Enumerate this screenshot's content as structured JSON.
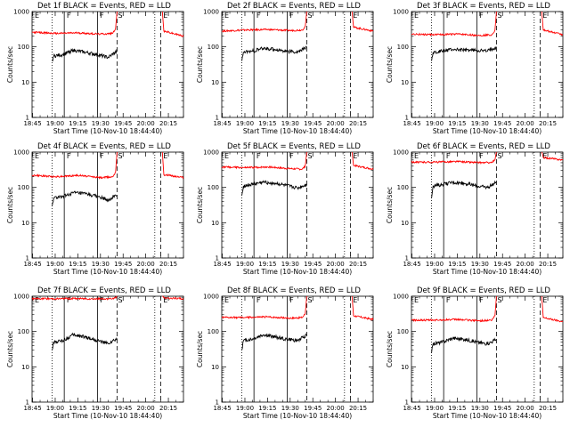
{
  "figure": {
    "x_tick_labels": [
      "18:45",
      "19:00",
      "19:15",
      "19:30",
      "19:45",
      "20:00",
      "20:15"
    ],
    "y_tick_labels": [
      "1",
      "10",
      "100",
      "1000"
    ],
    "xlabel": "Start Time (10-Nov-10 18:44:40)",
    "ylabel": "Counts/sec",
    "marker_flags": [
      "E",
      "F",
      "F",
      "S",
      "E"
    ],
    "colors": {
      "events": "#000000",
      "lld": "#ff0000",
      "background": "#ffffff"
    }
  },
  "chart_data": [
    {
      "type": "line",
      "title": "Det 1f BLACK = Events, RED = LLD",
      "xlabel": "Start Time (10-Nov-10 18:44:40)",
      "ylabel": "Counts/sec",
      "xlim": [
        "18:44:40",
        "20:25"
      ],
      "ylim": [
        1,
        1000
      ],
      "yscale": "log",
      "markers": {
        "dotted": [
          "18:58",
          "20:06"
        ],
        "solid": [
          "19:06",
          "19:28"
        ],
        "dashed": [
          "19:41",
          "20:10"
        ]
      },
      "series": [
        {
          "name": "LLD",
          "x": [
            "18:44:40",
            "19:00",
            "19:15",
            "19:30",
            "19:38",
            "19:40",
            "19:41",
            "20:11",
            "20:12",
            "20:25"
          ],
          "values": [
            260,
            240,
            250,
            230,
            240,
            330,
            1000,
            1000,
            280,
            200
          ]
        },
        {
          "name": "Events",
          "x": [
            "18:58",
            "18:59",
            "19:05",
            "19:12",
            "19:20",
            "19:28",
            "19:35",
            "19:41"
          ],
          "values": [
            40,
            55,
            60,
            80,
            70,
            60,
            50,
            75
          ]
        }
      ]
    },
    {
      "type": "line",
      "title": "Det 2f BLACK = Events, RED = LLD",
      "xlabel": "Start Time (10-Nov-10 18:44:40)",
      "ylabel": "Counts/sec",
      "xlim": [
        "18:44:40",
        "20:25"
      ],
      "ylim": [
        1,
        1000
      ],
      "yscale": "log",
      "markers": {
        "dotted": [
          "18:58",
          "20:06"
        ],
        "solid": [
          "19:06",
          "19:28"
        ],
        "dashed": [
          "19:41",
          "20:10"
        ]
      },
      "series": [
        {
          "name": "LLD",
          "x": [
            "18:44:40",
            "19:00",
            "19:15",
            "19:30",
            "19:38",
            "19:40",
            "19:41",
            "20:11",
            "20:12",
            "20:25"
          ],
          "values": [
            280,
            300,
            310,
            290,
            300,
            380,
            1000,
            1000,
            360,
            280
          ]
        },
        {
          "name": "Events",
          "x": [
            "18:58",
            "18:59",
            "19:05",
            "19:12",
            "19:20",
            "19:28",
            "19:35",
            "19:41"
          ],
          "values": [
            40,
            70,
            75,
            90,
            85,
            75,
            70,
            100
          ]
        }
      ]
    },
    {
      "type": "line",
      "title": "Det 3f BLACK = Events, RED = LLD",
      "xlabel": "Start Time (10-Nov-10 18:44:40)",
      "ylabel": "Counts/sec",
      "xlim": [
        "18:44:40",
        "20:25"
      ],
      "ylim": [
        1,
        1000
      ],
      "yscale": "log",
      "markers": {
        "dotted": [
          "18:58",
          "20:06"
        ],
        "solid": [
          "19:06",
          "19:28"
        ],
        "dashed": [
          "19:41",
          "20:10"
        ]
      },
      "series": [
        {
          "name": "LLD",
          "x": [
            "18:44:40",
            "19:00",
            "19:15",
            "19:30",
            "19:38",
            "19:40",
            "19:41",
            "20:11",
            "20:12",
            "20:25"
          ],
          "values": [
            230,
            220,
            230,
            210,
            220,
            300,
            1000,
            1000,
            300,
            220
          ]
        },
        {
          "name": "Events",
          "x": [
            "18:58",
            "18:59",
            "19:05",
            "19:12",
            "19:20",
            "19:28",
            "19:35",
            "19:41"
          ],
          "values": [
            40,
            70,
            75,
            85,
            80,
            80,
            75,
            100
          ]
        }
      ]
    },
    {
      "type": "line",
      "title": "Det 4f BLACK = Events, RED = LLD",
      "xlabel": "Start Time (10-Nov-10 18:44:40)",
      "ylabel": "Counts/sec",
      "xlim": [
        "18:44:40",
        "20:25"
      ],
      "ylim": [
        1,
        1000
      ],
      "yscale": "log",
      "markers": {
        "dotted": [
          "18:58",
          "20:06"
        ],
        "solid": [
          "19:06",
          "19:28"
        ],
        "dashed": [
          "19:41",
          "20:10"
        ]
      },
      "series": [
        {
          "name": "LLD",
          "x": [
            "18:44:40",
            "19:00",
            "19:15",
            "19:30",
            "19:38",
            "19:40",
            "19:41",
            "20:11",
            "20:12",
            "20:25"
          ],
          "values": [
            220,
            200,
            220,
            190,
            200,
            270,
            1000,
            1000,
            230,
            190
          ]
        },
        {
          "name": "Events",
          "x": [
            "18:58",
            "18:59",
            "19:05",
            "19:12",
            "19:20",
            "19:28",
            "19:35",
            "19:41"
          ],
          "values": [
            30,
            50,
            55,
            70,
            65,
            55,
            45,
            60
          ]
        }
      ]
    },
    {
      "type": "line",
      "title": "Det 5f BLACK = Events, RED = LLD",
      "xlabel": "Start Time (10-Nov-10 18:44:40)",
      "ylabel": "Counts/sec",
      "xlim": [
        "18:44:40",
        "20:25"
      ],
      "ylim": [
        1,
        1000
      ],
      "yscale": "log",
      "markers": {
        "dotted": [
          "18:58",
          "20:06"
        ],
        "solid": [
          "19:06",
          "19:28"
        ],
        "dashed": [
          "19:41",
          "20:10"
        ]
      },
      "series": [
        {
          "name": "LLD",
          "x": [
            "18:44:40",
            "19:00",
            "19:15",
            "19:30",
            "19:38",
            "19:40",
            "19:41",
            "20:11",
            "20:12",
            "20:25"
          ],
          "values": [
            380,
            360,
            380,
            340,
            330,
            400,
            1000,
            1000,
            420,
            330
          ]
        },
        {
          "name": "Events",
          "x": [
            "18:58",
            "18:59",
            "19:05",
            "19:12",
            "19:20",
            "19:28",
            "19:35",
            "19:41"
          ],
          "values": [
            60,
            110,
            120,
            140,
            130,
            110,
            95,
            120
          ]
        }
      ]
    },
    {
      "type": "line",
      "title": "Det 6f BLACK = Events, RED = LLD",
      "xlabel": "Start Time (10-Nov-10 18:44:40)",
      "ylabel": "Counts/sec",
      "xlim": [
        "18:44:40",
        "20:25"
      ],
      "ylim": [
        1,
        1000
      ],
      "yscale": "log",
      "markers": {
        "dotted": [
          "18:58",
          "20:06"
        ],
        "solid": [
          "19:06",
          "19:28"
        ],
        "dashed": [
          "19:41",
          "20:10"
        ]
      },
      "series": [
        {
          "name": "LLD",
          "x": [
            "18:44:40",
            "19:00",
            "19:15",
            "19:30",
            "19:38",
            "19:40",
            "19:41",
            "20:11",
            "20:12",
            "20:25"
          ],
          "values": [
            520,
            520,
            540,
            500,
            510,
            600,
            1000,
            1000,
            700,
            600
          ]
        },
        {
          "name": "Events",
          "x": [
            "18:58",
            "18:59",
            "19:05",
            "19:12",
            "19:20",
            "19:28",
            "19:35",
            "19:41"
          ],
          "values": [
            50,
            110,
            120,
            140,
            130,
            110,
            100,
            140
          ]
        }
      ]
    },
    {
      "type": "line",
      "title": "Det 7f BLACK = Events, RED = LLD",
      "xlabel": "Start Time (10-Nov-10 18:44:40)",
      "ylabel": "Counts/sec",
      "xlim": [
        "18:44:40",
        "20:25"
      ],
      "ylim": [
        1,
        1000
      ],
      "yscale": "log",
      "markers": {
        "dotted": [
          "18:58",
          "20:06"
        ],
        "solid": [
          "19:06",
          "19:28"
        ],
        "dashed": [
          "19:41",
          "20:10"
        ]
      },
      "series": [
        {
          "name": "LLD",
          "x": [
            "18:44:40",
            "19:00",
            "19:15",
            "19:30",
            "19:38",
            "19:40",
            "19:41",
            "20:11",
            "20:12",
            "20:25"
          ],
          "values": [
            850,
            850,
            860,
            840,
            850,
            900,
            1000,
            1000,
            900,
            850
          ]
        },
        {
          "name": "Events",
          "x": [
            "18:58",
            "18:59",
            "19:05",
            "19:12",
            "19:20",
            "19:28",
            "19:35",
            "19:41"
          ],
          "values": [
            30,
            50,
            55,
            80,
            70,
            55,
            45,
            60
          ]
        }
      ]
    },
    {
      "type": "line",
      "title": "Det 8f BLACK = Events, RED = LLD",
      "xlabel": "Start Time (10-Nov-10 18:44:40)",
      "ylabel": "Counts/sec",
      "xlim": [
        "18:44:40",
        "20:25"
      ],
      "ylim": [
        1,
        1000
      ],
      "yscale": "log",
      "markers": {
        "dotted": [
          "18:58",
          "20:06"
        ],
        "solid": [
          "19:06",
          "19:28"
        ],
        "dashed": [
          "19:41",
          "20:10"
        ]
      },
      "series": [
        {
          "name": "LLD",
          "x": [
            "18:44:40",
            "19:00",
            "19:15",
            "19:30",
            "19:38",
            "19:40",
            "19:41",
            "20:11",
            "20:12",
            "20:25"
          ],
          "values": [
            250,
            250,
            260,
            240,
            250,
            320,
            1000,
            1000,
            280,
            220
          ]
        },
        {
          "name": "Events",
          "x": [
            "18:58",
            "18:59",
            "19:05",
            "19:12",
            "19:20",
            "19:28",
            "19:35",
            "19:41"
          ],
          "values": [
            30,
            55,
            60,
            80,
            70,
            60,
            55,
            80
          ]
        }
      ]
    },
    {
      "type": "line",
      "title": "Det 9f BLACK = Events, RED = LLD",
      "xlabel": "Start Time (10-Nov-10 18:44:40)",
      "ylabel": "Counts/sec",
      "xlim": [
        "18:44:40",
        "20:25"
      ],
      "ylim": [
        1,
        1000
      ],
      "yscale": "log",
      "markers": {
        "dotted": [
          "18:58",
          "20:06"
        ],
        "solid": [
          "19:06",
          "19:28"
        ],
        "dashed": [
          "19:41",
          "20:10"
        ]
      },
      "series": [
        {
          "name": "LLD",
          "x": [
            "18:44:40",
            "19:00",
            "19:15",
            "19:30",
            "19:38",
            "19:40",
            "19:41",
            "20:11",
            "20:12",
            "20:25"
          ],
          "values": [
            210,
            210,
            220,
            200,
            210,
            280,
            1000,
            1000,
            250,
            190
          ]
        },
        {
          "name": "Events",
          "x": [
            "18:58",
            "18:59",
            "19:05",
            "19:12",
            "19:20",
            "19:28",
            "19:35",
            "19:41"
          ],
          "values": [
            25,
            45,
            50,
            65,
            60,
            50,
            45,
            60
          ]
        }
      ]
    }
  ]
}
